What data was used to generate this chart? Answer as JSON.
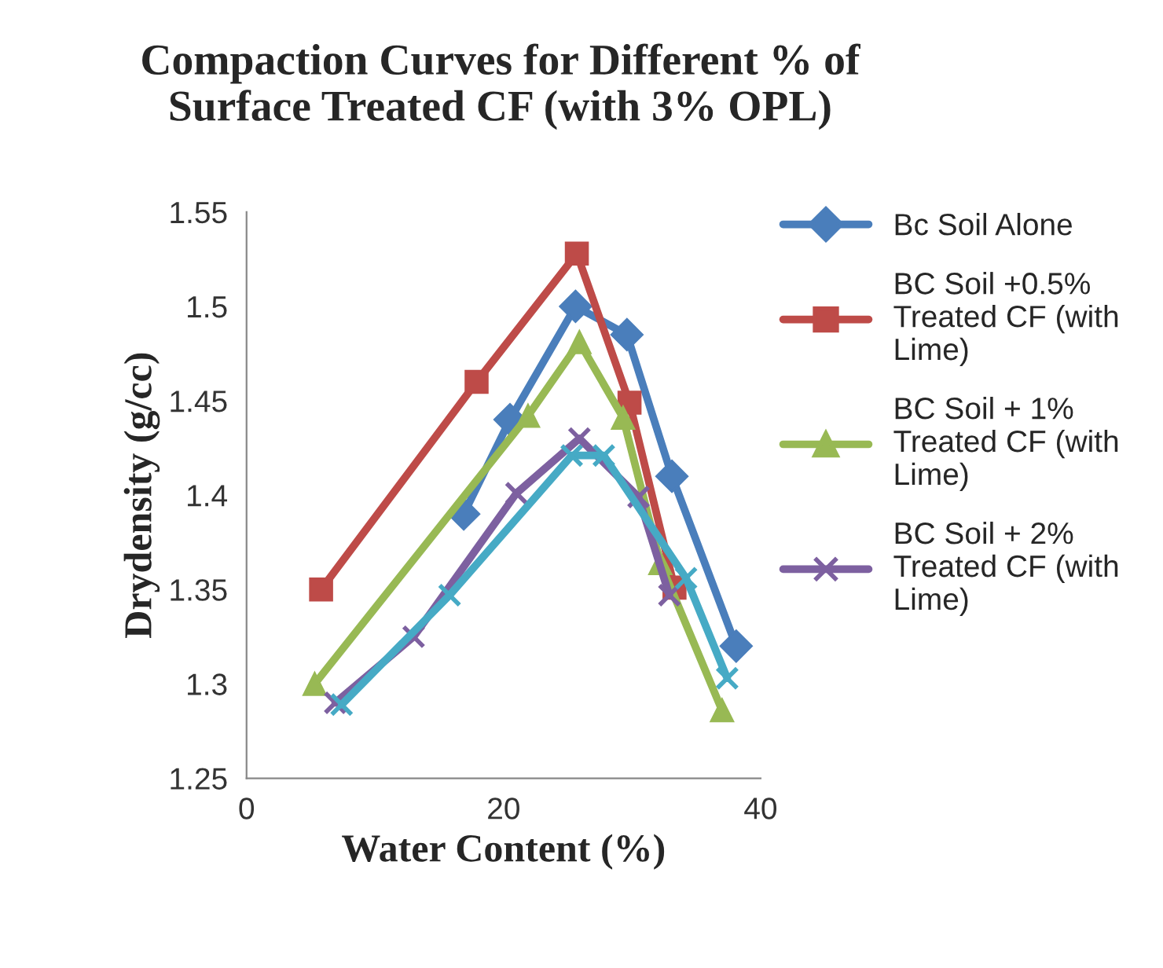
{
  "chart_data": {
    "type": "line",
    "title": "Compaction Curves for Different % of\nSurface Treated CF (with 3% OPL)",
    "xlabel": "Water Content (%)",
    "ylabel": "Drydensity (g/cc)",
    "xlim": [
      0,
      40
    ],
    "xticks": [
      0,
      20,
      40
    ],
    "ylim": [
      1.25,
      1.55
    ],
    "yticks": [
      1.25,
      1.3,
      1.35,
      1.4,
      1.45,
      1.5,
      1.55
    ],
    "grid": false,
    "legend": "right",
    "series": [
      {
        "name": "Bc Soil Alone",
        "color": "#4a7ebb",
        "marker": "diamond",
        "x": [
          16.9,
          20.5,
          25.6,
          29.6,
          33.1,
          38.1
        ],
        "values": [
          1.39,
          1.44,
          1.5,
          1.485,
          1.41,
          1.32
        ]
      },
      {
        "name": "BC Soil +0.5%\nTreated CF (with\nLime)",
        "color": "#be4b48",
        "marker": "square",
        "x": [
          5.8,
          17.9,
          25.7,
          29.8,
          33.3
        ],
        "values": [
          1.35,
          1.46,
          1.528,
          1.449,
          1.351
        ]
      },
      {
        "name": "BC Soil + 1%\nTreated CF (with\nLime)",
        "color": "#98b954",
        "marker": "triangle",
        "x": [
          5.3,
          21.9,
          25.9,
          29.3,
          32.2,
          37.0
        ],
        "values": [
          1.3,
          1.442,
          1.481,
          1.441,
          1.364,
          1.286
        ]
      },
      {
        "name": "BC Soil + 2%\nTreated CF (with\nLime)",
        "color": "#7d60a0",
        "marker": "cross",
        "x": [
          6.9,
          13.0,
          21.0,
          25.9,
          30.5,
          32.9
        ],
        "values": [
          1.29,
          1.325,
          1.401,
          1.43,
          1.399,
          1.347
        ]
      },
      {
        "color": "#46aac5",
        "marker": "cross",
        "x": [
          7.4,
          15.8,
          25.3,
          27.8,
          34.2,
          37.4
        ],
        "values": [
          1.289,
          1.347,
          1.421,
          1.421,
          1.356,
          1.303
        ]
      }
    ]
  }
}
